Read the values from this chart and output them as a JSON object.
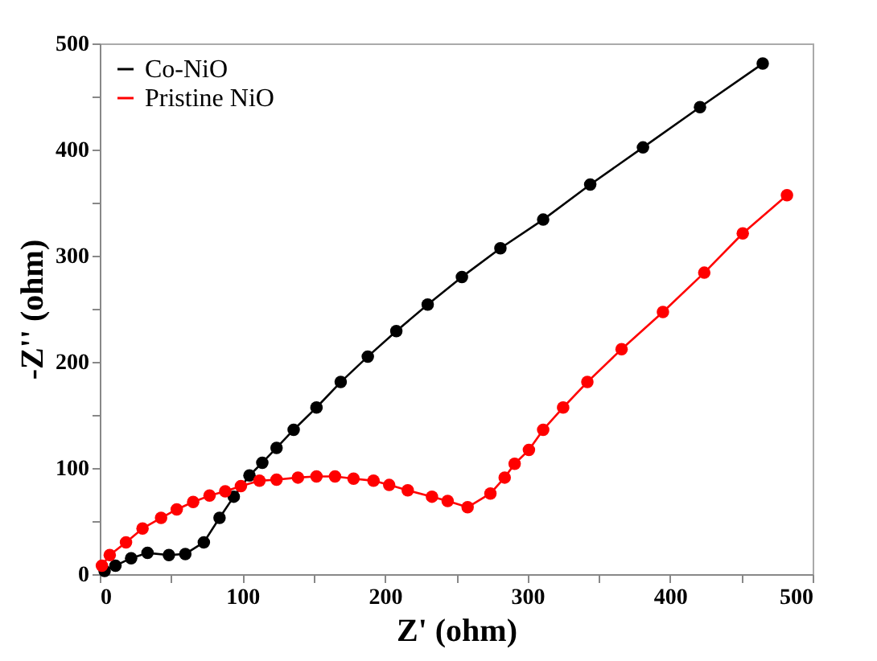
{
  "chart_data": {
    "type": "line",
    "xlabel": "Z' (ohm)",
    "ylabel": "-Z'' (ohm)",
    "xlim": [
      0,
      500
    ],
    "ylim": [
      0,
      500
    ],
    "xticks": [
      0,
      {
        "value": 50,
        "label": null
      },
      100,
      {
        "value": 150,
        "label": null
      },
      200,
      {
        "value": 250,
        "label": null
      },
      300,
      {
        "value": 350,
        "label": null
      },
      400,
      {
        "value": 450,
        "label": null
      },
      500
    ],
    "yticks": [
      0,
      {
        "value": 50,
        "label": null
      },
      100,
      {
        "value": 150,
        "label": null
      },
      200,
      {
        "value": 250,
        "label": null
      },
      300,
      {
        "value": 350,
        "label": null
      },
      400,
      {
        "value": 450,
        "label": null
      },
      500
    ],
    "grid": false,
    "legend": "top left",
    "marker": "circle",
    "line_style": "solid",
    "series": [
      {
        "name": "Co-NiO",
        "color": "#000000",
        "x": [
          3.4,
          11,
          22,
          33.5,
          48.5,
          60,
          73,
          84,
          94,
          105,
          114,
          124,
          136,
          152,
          169,
          188,
          208,
          230,
          254,
          281,
          311,
          344,
          381,
          421,
          465
        ],
        "values": [
          3,
          8,
          15,
          20,
          18,
          19,
          30,
          53,
          73,
          93,
          105,
          119,
          136,
          157,
          181,
          205,
          229,
          254,
          280,
          307,
          334,
          367,
          402,
          440,
          481
        ]
      },
      {
        "name": "Pristine NiO",
        "color": "#ff0000",
        "x": [
          1.5,
          7,
          18.4,
          30,
          43,
          54,
          65.5,
          77,
          88,
          99,
          112,
          124,
          139,
          152,
          165,
          178,
          192,
          203,
          216,
          233,
          244,
          258,
          274,
          284,
          291,
          301,
          311,
          325,
          342,
          366,
          395,
          424,
          451,
          482
        ],
        "values": [
          8,
          18,
          30,
          43,
          53,
          61,
          68,
          74,
          78,
          83,
          88,
          89,
          91,
          92,
          92,
          90,
          88,
          84,
          79,
          73,
          69,
          63,
          76,
          91,
          104,
          117,
          136,
          157,
          181,
          212,
          247,
          284,
          321,
          357
        ]
      }
    ]
  }
}
